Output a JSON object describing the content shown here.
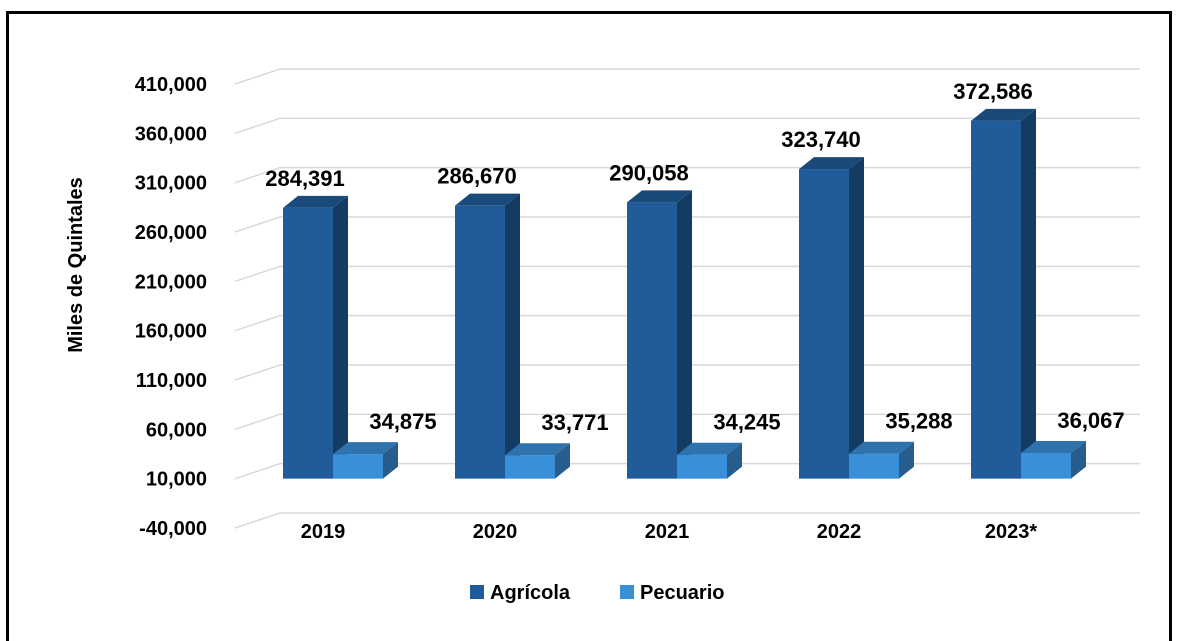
{
  "chart_data": {
    "type": "bar",
    "categories": [
      "2019",
      "2020",
      "2021",
      "2022",
      "2023*"
    ],
    "series": [
      {
        "name": "Agrícola",
        "values": [
          284391,
          286670,
          290058,
          323740,
          372586
        ],
        "color": "#1F5C99"
      },
      {
        "name": "Pecuario",
        "values": [
          34875,
          33771,
          34245,
          35288,
          36067
        ],
        "color": "#3A8FD9"
      }
    ],
    "value_labels": [
      [
        "284,391",
        "286,670",
        "290,058",
        "323,740",
        "372,586"
      ],
      [
        "34,875",
        "33,771",
        "34,245",
        "35,288",
        "36,067"
      ]
    ],
    "ylabel": "Miles de Quintales",
    "yticks": [
      -40000,
      10000,
      60000,
      110000,
      160000,
      210000,
      260000,
      310000,
      360000,
      410000
    ],
    "ytick_labels": [
      "-40,000",
      "10,000",
      "60,000",
      "110,000",
      "160,000",
      "210,000",
      "260,000",
      "310,000",
      "360,000",
      "410,000"
    ],
    "ylim": [
      -40000,
      410000
    ],
    "grid": true,
    "legend_position": "bottom",
    "style": "3d-column"
  }
}
